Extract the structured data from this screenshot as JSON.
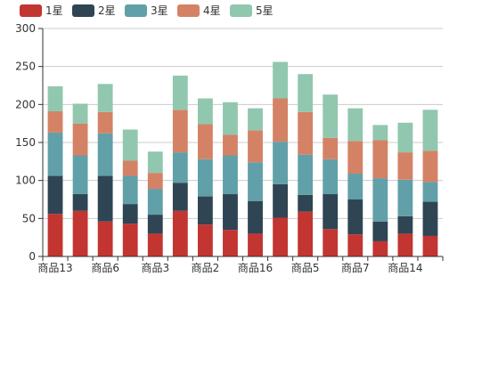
{
  "chart_data": {
    "type": "bar",
    "stacked": true,
    "legend_position": "top-left",
    "grid": true,
    "ylim": [
      0,
      300
    ],
    "yticks": [
      0,
      50,
      100,
      150,
      200,
      250,
      300
    ],
    "categories": [
      "商品13",
      "商品",
      "商品6",
      "商品",
      "商品3",
      "商品",
      "商品2",
      "商品",
      "商品16",
      "商品",
      "商品5",
      "商品",
      "商品7",
      "商品",
      "商品14",
      "商品"
    ],
    "visible_x_labels": [
      "商品13",
      "商品6",
      "商品3",
      "商品2",
      "商品16",
      "商品5",
      "商品7",
      "商品14"
    ],
    "series": [
      {
        "name": "1星",
        "color": "#c23531",
        "values": [
          56,
          60,
          46,
          43,
          30,
          60,
          42,
          35,
          30,
          51,
          59,
          36,
          29,
          20,
          30,
          27
        ]
      },
      {
        "name": "2星",
        "color": "#2f4554",
        "values": [
          50,
          22,
          60,
          26,
          25,
          37,
          37,
          47,
          43,
          44,
          22,
          46,
          46,
          26,
          23,
          45
        ]
      },
      {
        "name": "3星",
        "color": "#61a0a8",
        "values": [
          57,
          51,
          56,
          37,
          34,
          40,
          49,
          51,
          51,
          56,
          53,
          46,
          34,
          57,
          48,
          26
        ]
      },
      {
        "name": "4星",
        "color": "#d48265",
        "values": [
          28,
          42,
          28,
          20,
          21,
          56,
          46,
          27,
          42,
          57,
          56,
          28,
          43,
          50,
          36,
          41
        ]
      },
      {
        "name": "5星",
        "color": "#91c7ae",
        "values": [
          33,
          26,
          37,
          41,
          28,
          45,
          34,
          43,
          29,
          48,
          50,
          57,
          43,
          20,
          39,
          54
        ]
      }
    ]
  }
}
